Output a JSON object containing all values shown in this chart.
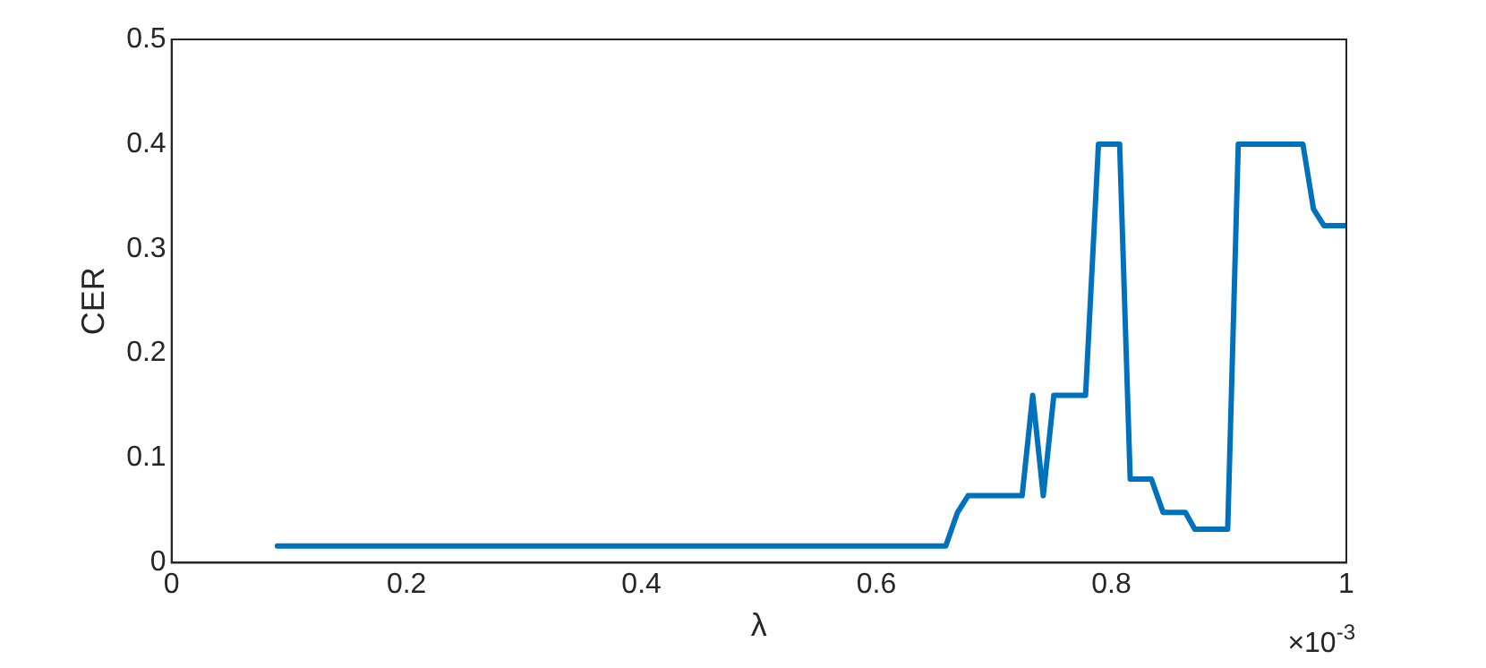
{
  "chart_data": {
    "type": "line",
    "xlabel": "λ",
    "ylabel": "CER",
    "annotations": [
      "×10$^{-3}$"
    ],
    "x": [
      0.09,
      0.659,
      0.669,
      0.678,
      0.724,
      0.733,
      0.742,
      0.751,
      0.778,
      0.789,
      0.807,
      0.816,
      0.834,
      0.844,
      0.863,
      0.871,
      0.899,
      0.908,
      0.963,
      0.972,
      0.981,
      1.0
    ],
    "series": [
      {
        "color": "#0072bd",
        "values": [
          0.016,
          0.016,
          0.048,
          0.064,
          0.064,
          0.16,
          0.064,
          0.16,
          0.16,
          0.4,
          0.4,
          0.08,
          0.08,
          0.048,
          0.048,
          0.032,
          0.032,
          0.4,
          0.4,
          0.338,
          0.322,
          0.322
        ]
      }
    ],
    "xlim": [
      0,
      1
    ],
    "ylim": [
      0,
      0.5
    ],
    "xticks": [
      0,
      0.2,
      0.4,
      0.6,
      0.8,
      1
    ],
    "yticks": [
      0,
      0.1,
      0.2,
      0.3,
      0.4,
      0.5
    ],
    "grid": false,
    "legend": false,
    "marker": "none",
    "line_style": "solid"
  }
}
